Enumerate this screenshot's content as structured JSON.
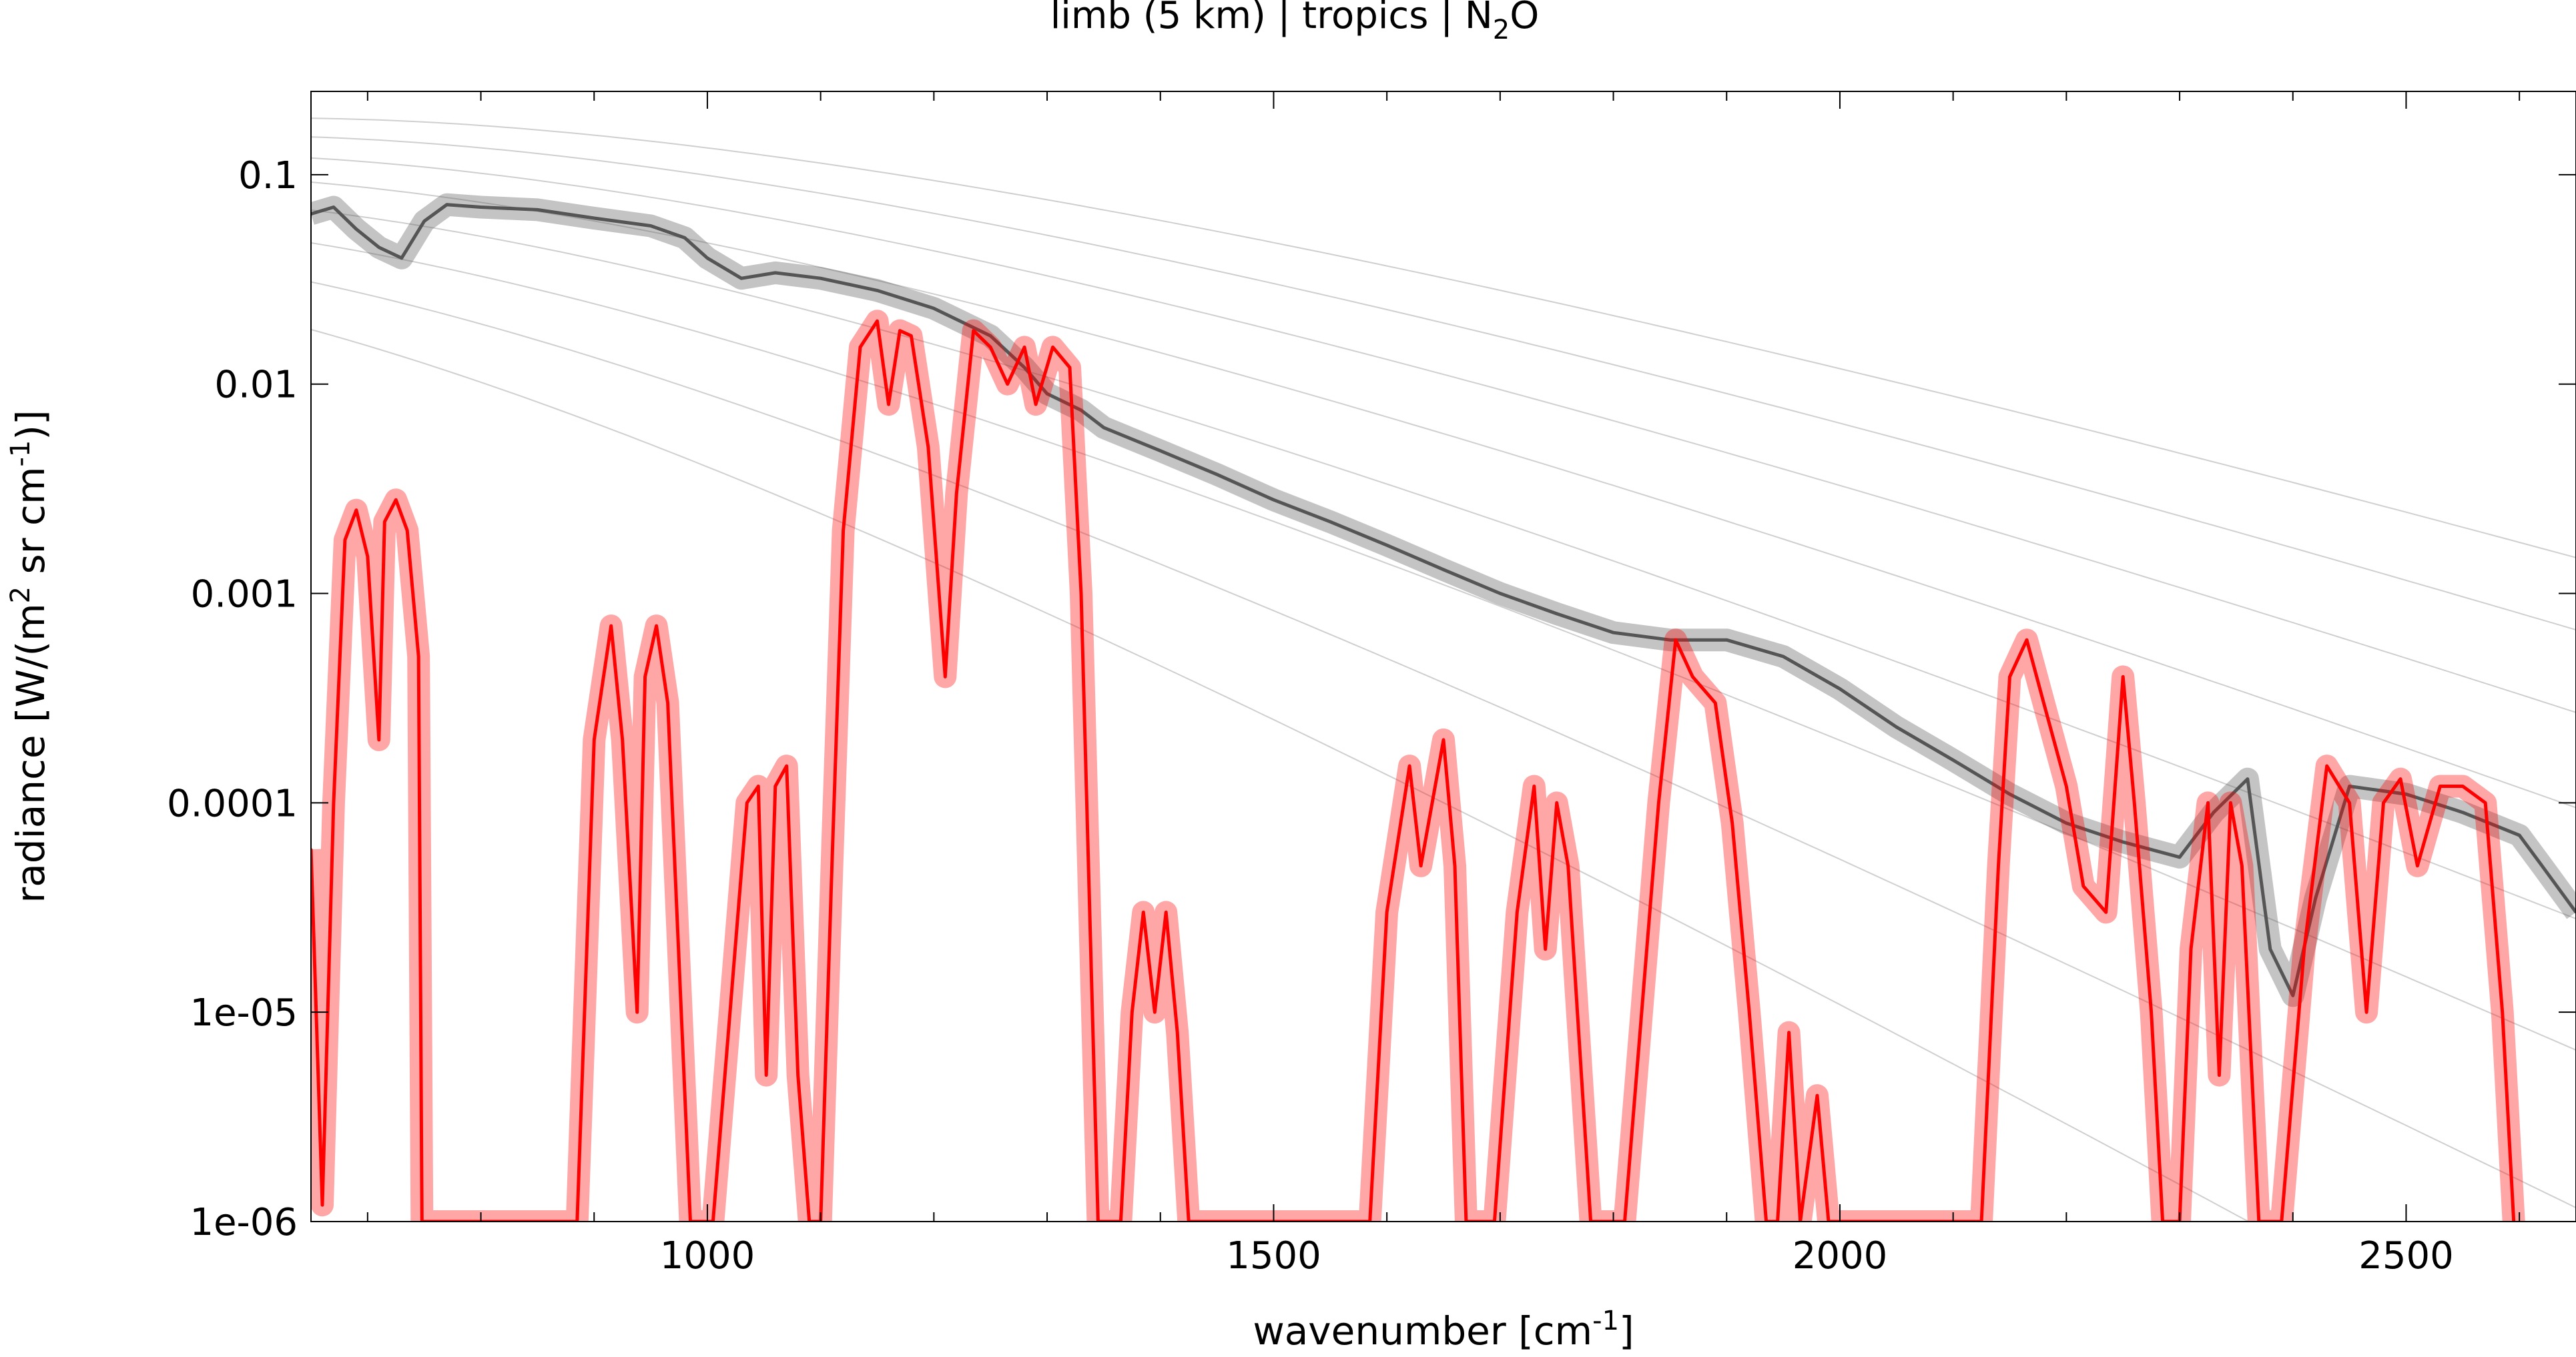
{
  "chart_data": {
    "type": "line",
    "title_main": "limb (5 km) | tropics | N",
    "title_sub": "2",
    "title_tail": "O",
    "xlabel_main": "wavenumber [cm",
    "xlabel_sup": "-1",
    "xlabel_tail": "]",
    "ylabel_main": "radiance [W/(m",
    "ylabel_sup1": "2",
    "ylabel_mid": " sr cm",
    "ylabel_sup2": "-1",
    "ylabel_tail": ")]",
    "xlim": [
      650,
      2650
    ],
    "ylim": [
      1e-06,
      0.25
    ],
    "yscale": "log",
    "grid": false,
    "x_ticks": [
      {
        "value": 1000,
        "label": "1000"
      },
      {
        "value": 1500,
        "label": "1500"
      },
      {
        "value": 2000,
        "label": "2000"
      },
      {
        "value": 2500,
        "label": "2500"
      }
    ],
    "y_ticks": [
      {
        "value": 0.1,
        "label": "0.1"
      },
      {
        "value": 0.01,
        "label": "0.01"
      },
      {
        "value": 0.001,
        "label": "0.001"
      },
      {
        "value": 0.0001,
        "label": "0.0001"
      },
      {
        "value": 1e-05,
        "label": "1e-05"
      },
      {
        "value": 1e-06,
        "label": "1e-06"
      }
    ],
    "planck_temperatures_K": [
      180,
      200,
      220,
      240,
      260,
      280,
      300,
      320
    ],
    "series": [
      {
        "color": "#555555",
        "points": [
          [
            650,
            0.065
          ],
          [
            670,
            0.07
          ],
          [
            690,
            0.055
          ],
          [
            710,
            0.045
          ],
          [
            730,
            0.04
          ],
          [
            750,
            0.06
          ],
          [
            770,
            0.072
          ],
          [
            800,
            0.07
          ],
          [
            850,
            0.068
          ],
          [
            900,
            0.062
          ],
          [
            950,
            0.057
          ],
          [
            980,
            0.05
          ],
          [
            1000,
            0.04
          ],
          [
            1030,
            0.032
          ],
          [
            1060,
            0.034
          ],
          [
            1100,
            0.032
          ],
          [
            1150,
            0.028
          ],
          [
            1200,
            0.023
          ],
          [
            1250,
            0.017
          ],
          [
            1280,
            0.012
          ],
          [
            1300,
            0.009
          ],
          [
            1330,
            0.0075
          ],
          [
            1350,
            0.0062
          ],
          [
            1400,
            0.0048
          ],
          [
            1450,
            0.0037
          ],
          [
            1500,
            0.0028
          ],
          [
            1550,
            0.0022
          ],
          [
            1600,
            0.0017
          ],
          [
            1650,
            0.0013
          ],
          [
            1700,
            0.001
          ],
          [
            1750,
            0.0008
          ],
          [
            1800,
            0.00065
          ],
          [
            1850,
            0.0006
          ],
          [
            1900,
            0.0006
          ],
          [
            1950,
            0.0005
          ],
          [
            2000,
            0.00035
          ],
          [
            2050,
            0.00023
          ],
          [
            2100,
            0.00016
          ],
          [
            2150,
            0.00011
          ],
          [
            2200,
            8e-05
          ],
          [
            2250,
            6.5e-05
          ],
          [
            2300,
            5.5e-05
          ],
          [
            2330,
            9e-05
          ],
          [
            2360,
            0.00013
          ],
          [
            2380,
            2e-05
          ],
          [
            2400,
            1.2e-05
          ],
          [
            2420,
            3.5e-05
          ],
          [
            2450,
            0.00012
          ],
          [
            2500,
            0.00011
          ],
          [
            2550,
            9e-05
          ],
          [
            2600,
            7e-05
          ],
          [
            2620,
            5e-05
          ],
          [
            2650,
            3e-05
          ]
        ]
      },
      {
        "color": "#ff0000",
        "points": [
          [
            650,
            6e-05
          ],
          [
            660,
            1.2e-06
          ],
          [
            670,
            0.0001
          ],
          [
            680,
            0.0018
          ],
          [
            690,
            0.0025
          ],
          [
            700,
            0.0015
          ],
          [
            710,
            0.0002
          ],
          [
            715,
            0.0022
          ],
          [
            725,
            0.0028
          ],
          [
            735,
            0.002
          ],
          [
            745,
            0.0005
          ],
          [
            748,
            1e-06
          ],
          [
            885,
            1e-06
          ],
          [
            900,
            0.0002
          ],
          [
            915,
            0.0007
          ],
          [
            925,
            0.0002
          ],
          [
            938,
            1e-05
          ],
          [
            945,
            0.0004
          ],
          [
            955,
            0.0007
          ],
          [
            965,
            0.0003
          ],
          [
            985,
            1e-06
          ],
          [
            1005,
            1e-06
          ],
          [
            1020,
            1e-05
          ],
          [
            1035,
            0.0001
          ],
          [
            1045,
            0.00012
          ],
          [
            1052,
            5e-06
          ],
          [
            1060,
            0.00012
          ],
          [
            1070,
            0.00015
          ],
          [
            1080,
            5e-06
          ],
          [
            1090,
            1e-06
          ],
          [
            1100,
            1e-06
          ],
          [
            1110,
            5e-05
          ],
          [
            1120,
            0.002
          ],
          [
            1135,
            0.015
          ],
          [
            1150,
            0.02
          ],
          [
            1160,
            0.008
          ],
          [
            1170,
            0.018
          ],
          [
            1180,
            0.017
          ],
          [
            1195,
            0.005
          ],
          [
            1210,
            0.0004
          ],
          [
            1220,
            0.003
          ],
          [
            1235,
            0.018
          ],
          [
            1250,
            0.015
          ],
          [
            1265,
            0.01
          ],
          [
            1280,
            0.015
          ],
          [
            1290,
            0.008
          ],
          [
            1305,
            0.015
          ],
          [
            1320,
            0.012
          ],
          [
            1330,
            0.001
          ],
          [
            1345,
            1e-06
          ],
          [
            1365,
            1e-06
          ],
          [
            1375,
            1e-05
          ],
          [
            1385,
            3e-05
          ],
          [
            1395,
            1e-05
          ],
          [
            1405,
            3e-05
          ],
          [
            1415,
            8e-06
          ],
          [
            1425,
            1e-06
          ],
          [
            1585,
            1e-06
          ],
          [
            1600,
            3e-05
          ],
          [
            1620,
            0.00015
          ],
          [
            1630,
            5e-05
          ],
          [
            1650,
            0.0002
          ],
          [
            1660,
            5e-05
          ],
          [
            1670,
            1e-06
          ],
          [
            1695,
            1e-06
          ],
          [
            1715,
            3e-05
          ],
          [
            1730,
            0.00012
          ],
          [
            1740,
            2e-05
          ],
          [
            1750,
            0.0001
          ],
          [
            1760,
            5e-05
          ],
          [
            1780,
            1e-06
          ],
          [
            1810,
            1e-06
          ],
          [
            1840,
            0.0001
          ],
          [
            1855,
            0.0006
          ],
          [
            1870,
            0.0004
          ],
          [
            1890,
            0.0003
          ],
          [
            1905,
            8e-05
          ],
          [
            1920,
            1e-05
          ],
          [
            1935,
            1e-06
          ],
          [
            1945,
            1e-06
          ],
          [
            1955,
            8e-06
          ],
          [
            1965,
            1e-06
          ],
          [
            1980,
            4e-06
          ],
          [
            1990,
            1e-06
          ],
          [
            2125,
            1e-06
          ],
          [
            2140,
            5e-05
          ],
          [
            2150,
            0.0004
          ],
          [
            2165,
            0.0006
          ],
          [
            2180,
            0.0003
          ],
          [
            2200,
            0.00012
          ],
          [
            2215,
            4e-05
          ],
          [
            2235,
            3e-05
          ],
          [
            2250,
            0.0004
          ],
          [
            2260,
            0.0001
          ],
          [
            2275,
            1e-05
          ],
          [
            2285,
            1e-06
          ],
          [
            2300,
            1e-06
          ],
          [
            2310,
            2e-05
          ],
          [
            2325,
            0.0001
          ],
          [
            2335,
            5e-06
          ],
          [
            2345,
            0.0001
          ],
          [
            2355,
            5e-05
          ],
          [
            2370,
            1e-06
          ],
          [
            2390,
            1e-06
          ],
          [
            2410,
            2e-05
          ],
          [
            2430,
            0.00015
          ],
          [
            2450,
            0.0001
          ],
          [
            2465,
            1e-05
          ],
          [
            2480,
            0.0001
          ],
          [
            2495,
            0.00013
          ],
          [
            2510,
            5e-05
          ],
          [
            2530,
            0.00012
          ],
          [
            2550,
            0.00012
          ],
          [
            2570,
            0.0001
          ],
          [
            2585,
            1e-05
          ],
          [
            2595,
            1e-06
          ]
        ]
      }
    ]
  }
}
